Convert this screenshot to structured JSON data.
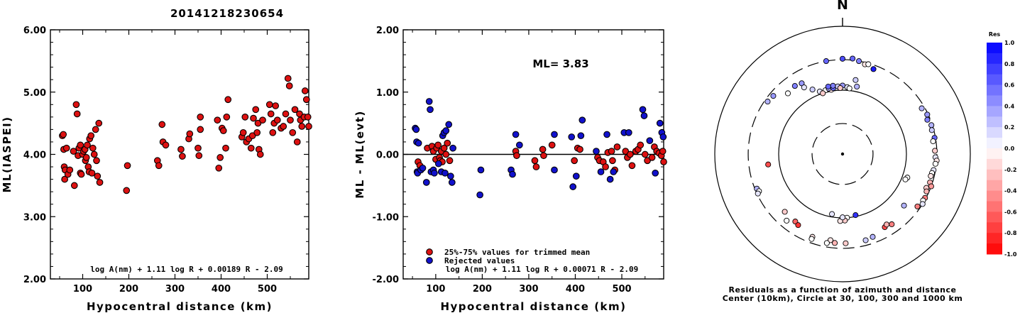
{
  "title": "20141218230654",
  "chart_data": [
    {
      "type": "scatter",
      "ylabel": "ML(IASPEI)",
      "xlabel": "Hypocentral distance (km)",
      "xlim": [
        30,
        590
      ],
      "ylim": [
        2.0,
        6.0
      ],
      "xticks": [
        "100",
        "200",
        "300",
        "400",
        "500"
      ],
      "yticks": [
        "2.00",
        "3.00",
        "4.00",
        "5.00",
        "6.00"
      ],
      "annotation": "log A(nm) + 1.11 log R + 0.00189 R - 2.09",
      "marker_color": "#dd1111",
      "points": [
        [
          56,
          4.3
        ],
        [
          58,
          4.32
        ],
        [
          59,
          4.08
        ],
        [
          60,
          3.8
        ],
        [
          61,
          3.6
        ],
        [
          62,
          3.75
        ],
        [
          65,
          4.1
        ],
        [
          68,
          3.68
        ],
        [
          72,
          3.75
        ],
        [
          80,
          4.05
        ],
        [
          82,
          3.5
        ],
        [
          86,
          4.8
        ],
        [
          88,
          4.65
        ],
        [
          90,
          3.98
        ],
        [
          92,
          4.1
        ],
        [
          95,
          4.15
        ],
        [
          95,
          3.7
        ],
        [
          97,
          3.68
        ],
        [
          100,
          4.0
        ],
        [
          102,
          4.05
        ],
        [
          105,
          4.08
        ],
        [
          106,
          3.9
        ],
        [
          108,
          3.95
        ],
        [
          110,
          4.15
        ],
        [
          112,
          3.8
        ],
        [
          114,
          3.72
        ],
        [
          115,
          4.25
        ],
        [
          118,
          4.3
        ],
        [
          120,
          3.7
        ],
        [
          122,
          4.1
        ],
        [
          125,
          4.0
        ],
        [
          128,
          4.4
        ],
        [
          130,
          3.9
        ],
        [
          132,
          3.65
        ],
        [
          135,
          4.5
        ],
        [
          137,
          3.55
        ],
        [
          195,
          3.42
        ],
        [
          197,
          3.82
        ],
        [
          262,
          3.9
        ],
        [
          265,
          3.82
        ],
        [
          272,
          4.48
        ],
        [
          274,
          4.2
        ],
        [
          280,
          4.15
        ],
        [
          313,
          4.08
        ],
        [
          316,
          3.97
        ],
        [
          330,
          4.25
        ],
        [
          332,
          4.33
        ],
        [
          350,
          4.1
        ],
        [
          352,
          3.98
        ],
        [
          355,
          4.6
        ],
        [
          355,
          4.4
        ],
        [
          392,
          4.55
        ],
        [
          395,
          3.78
        ],
        [
          398,
          3.95
        ],
        [
          402,
          4.42
        ],
        [
          405,
          4.38
        ],
        [
          410,
          4.1
        ],
        [
          412,
          4.6
        ],
        [
          415,
          4.88
        ],
        [
          445,
          4.28
        ],
        [
          448,
          4.35
        ],
        [
          452,
          4.6
        ],
        [
          455,
          4.2
        ],
        [
          460,
          4.25
        ],
        [
          465,
          4.1
        ],
        [
          468,
          4.3
        ],
        [
          470,
          4.58
        ],
        [
          475,
          4.72
        ],
        [
          478,
          4.35
        ],
        [
          480,
          4.5
        ],
        [
          482,
          4.08
        ],
        [
          485,
          4.0
        ],
        [
          490,
          4.55
        ],
        [
          505,
          4.8
        ],
        [
          508,
          4.65
        ],
        [
          512,
          4.35
        ],
        [
          515,
          4.5
        ],
        [
          518,
          4.78
        ],
        [
          522,
          4.55
        ],
        [
          530,
          4.42
        ],
        [
          535,
          4.45
        ],
        [
          540,
          4.65
        ],
        [
          545,
          5.22
        ],
        [
          548,
          5.1
        ],
        [
          550,
          4.55
        ],
        [
          555,
          4.35
        ],
        [
          560,
          4.72
        ],
        [
          565,
          4.2
        ],
        [
          570,
          4.65
        ],
        [
          572,
          4.55
        ],
        [
          575,
          4.45
        ],
        [
          580,
          4.6
        ],
        [
          582,
          5.02
        ],
        [
          585,
          4.88
        ],
        [
          588,
          4.6
        ],
        [
          590,
          4.45
        ]
      ]
    },
    {
      "type": "scatter",
      "ylabel": "ML - ML(evt)",
      "xlabel": "Hypocentral distance (km)",
      "xlim": [
        30,
        590
      ],
      "ylim": [
        -2.0,
        2.0
      ],
      "xticks": [
        "100",
        "200",
        "300",
        "400",
        "500"
      ],
      "yticks": [
        "-2.00",
        "-1.00",
        "0.00",
        "1.00",
        "2.00"
      ],
      "ml_label": "ML= 3.83",
      "annotation": "log A(nm) + 1.11 log R + 0.00071 R - 2.09",
      "legend": [
        {
          "label": "25%-75% values for trimmed mean",
          "color": "#dd1111"
        },
        {
          "label": "Rejected values",
          "color": "#1111cc"
        }
      ],
      "series": [
        {
          "name": "25%-75% values for trimmed mean",
          "color": "#dd1111",
          "points": [
            [
              62,
              -0.12
            ],
            [
              66,
              -0.18
            ],
            [
              82,
              0.1
            ],
            [
              92,
              0.13
            ],
            [
              95,
              0.05
            ],
            [
              100,
              -0.08
            ],
            [
              102,
              0.1
            ],
            [
              105,
              0.15
            ],
            [
              108,
              -0.05
            ],
            [
              110,
              -0.1
            ],
            [
              112,
              0.05
            ],
            [
              114,
              -0.12
            ],
            [
              118,
              0.1
            ],
            [
              122,
              0.0
            ],
            [
              125,
              0.18
            ],
            [
              130,
              -0.1
            ],
            [
              272,
              0.05
            ],
            [
              274,
              -0.02
            ],
            [
              313,
              -0.1
            ],
            [
              316,
              -0.2
            ],
            [
              330,
              0.08
            ],
            [
              332,
              -0.02
            ],
            [
              350,
              0.15
            ],
            [
              398,
              -0.1
            ],
            [
              405,
              0.1
            ],
            [
              410,
              0.08
            ],
            [
              448,
              -0.05
            ],
            [
              452,
              -0.1
            ],
            [
              460,
              -0.12
            ],
            [
              465,
              -0.2
            ],
            [
              470,
              0.03
            ],
            [
              478,
              0.05
            ],
            [
              480,
              -0.1
            ],
            [
              485,
              -0.25
            ],
            [
              490,
              0.12
            ],
            [
              508,
              0.05
            ],
            [
              512,
              -0.05
            ],
            [
              518,
              0.0
            ],
            [
              522,
              -0.18
            ],
            [
              530,
              0.05
            ],
            [
              535,
              0.08
            ],
            [
              540,
              0.15
            ],
            [
              550,
              0.0
            ],
            [
              555,
              -0.1
            ],
            [
              565,
              -0.05
            ],
            [
              570,
              0.12
            ],
            [
              575,
              0.05
            ],
            [
              580,
              0.02
            ],
            [
              585,
              -0.02
            ],
            [
              588,
              0.05
            ],
            [
              590,
              -0.12
            ]
          ]
        },
        {
          "name": "Rejected values",
          "color": "#1111cc",
          "points": [
            [
              56,
              0.42
            ],
            [
              58,
              0.4
            ],
            [
              59,
              0.2
            ],
            [
              60,
              -0.28
            ],
            [
              61,
              -0.3
            ],
            [
              63,
              0.18
            ],
            [
              68,
              -0.25
            ],
            [
              72,
              -0.22
            ],
            [
              80,
              -0.45
            ],
            [
              86,
              0.85
            ],
            [
              88,
              0.72
            ],
            [
              90,
              -0.28
            ],
            [
              95,
              -0.25
            ],
            [
              97,
              -0.3
            ],
            [
              106,
              -0.15
            ],
            [
              112,
              -0.28
            ],
            [
              115,
              0.3
            ],
            [
              118,
              0.35
            ],
            [
              120,
              -0.3
            ],
            [
              122,
              0.38
            ],
            [
              128,
              0.48
            ],
            [
              132,
              -0.35
            ],
            [
              135,
              -0.45
            ],
            [
              137,
              0.1
            ],
            [
              195,
              -0.65
            ],
            [
              197,
              -0.25
            ],
            [
              262,
              -0.25
            ],
            [
              265,
              -0.32
            ],
            [
              272,
              0.32
            ],
            [
              280,
              0.15
            ],
            [
              355,
              0.32
            ],
            [
              355,
              -0.25
            ],
            [
              392,
              0.28
            ],
            [
              395,
              -0.52
            ],
            [
              402,
              -0.35
            ],
            [
              412,
              0.3
            ],
            [
              415,
              0.55
            ],
            [
              445,
              0.05
            ],
            [
              455,
              -0.28
            ],
            [
              468,
              0.32
            ],
            [
              475,
              -0.4
            ],
            [
              482,
              -0.28
            ],
            [
              505,
              0.35
            ],
            [
              515,
              0.35
            ],
            [
              545,
              0.72
            ],
            [
              548,
              0.62
            ],
            [
              560,
              0.22
            ],
            [
              572,
              -0.3
            ],
            [
              582,
              0.5
            ],
            [
              586,
              0.35
            ],
            [
              589,
              0.28
            ]
          ]
        }
      ]
    },
    {
      "type": "scatter",
      "subtype": "polar-residuals",
      "north_label": "N",
      "caption_line1": "Residuals as a function of azimuth and distance",
      "caption_line2": "Center (10km), Circle at 30, 100, 300 and 1000 km",
      "colorbar_title": "Res",
      "colorbar_ticks": [
        "1.0",
        "0.8",
        "0.6",
        "0.4",
        "0.2",
        "0.0",
        "-0.2",
        "-0.4",
        "-0.6",
        "-0.8",
        "-1.0"
      ],
      "rings_km": [
        30,
        100,
        300,
        1000
      ],
      "points_az_dist_res": [
        [
          350,
          300,
          0.6
        ],
        [
          0,
          310,
          0.7
        ],
        [
          6,
          318,
          0.6
        ],
        [
          10,
          300,
          0.5
        ],
        [
          14,
          280,
          -0.1
        ],
        [
          16,
          290,
          0.0
        ],
        [
          20,
          260,
          0.9
        ],
        [
          330,
          190,
          0.4
        ],
        [
          325,
          200,
          0.5
        ],
        [
          330,
          160,
          0.1
        ],
        [
          305,
          270,
          0.3
        ],
        [
          310,
          260,
          0.4
        ],
        [
          318,
          190,
          0.0
        ],
        [
          335,
          130,
          0.2
        ],
        [
          340,
          110,
          0.1
        ],
        [
          345,
          108,
          0.0
        ],
        [
          350,
          105,
          -0.1
        ],
        [
          342,
          100,
          -0.2
        ],
        [
          348,
          112,
          0.3
        ],
        [
          352,
          110,
          0.6
        ],
        [
          356,
          115,
          0.2
        ],
        [
          0,
          118,
          0.4
        ],
        [
          4,
          112,
          0.1
        ],
        [
          6,
          108,
          0.0
        ],
        [
          358,
          108,
          -0.2
        ],
        [
          352,
          120,
          0.5
        ],
        [
          348,
          120,
          0.6
        ],
        [
          10,
          150,
          0.2
        ],
        [
          12,
          120,
          0.3
        ],
        [
          60,
          270,
          0.3
        ],
        [
          65,
          290,
          0.4
        ],
        [
          68,
          270,
          0.5
        ],
        [
          72,
          290,
          0.3
        ],
        [
          75,
          280,
          0.2
        ],
        [
          80,
          290,
          0.6
        ],
        [
          82,
          270,
          0.0
        ],
        [
          88,
          280,
          -0.2
        ],
        [
          92,
          285,
          0.1
        ],
        [
          94,
          300,
          -0.1
        ],
        [
          96,
          290,
          0.0
        ],
        [
          100,
          280,
          0.1
        ],
        [
          102,
          270,
          0.0
        ],
        [
          104,
          265,
          -0.1
        ],
        [
          108,
          275,
          -0.3
        ],
        [
          110,
          300,
          -0.4
        ],
        [
          112,
          260,
          -0.2
        ],
        [
          114,
          275,
          -0.3
        ],
        [
          118,
          290,
          -0.5
        ],
        [
          120,
          285,
          0.0
        ],
        [
          122,
          300,
          0.1
        ],
        [
          125,
          270,
          -0.5
        ],
        [
          130,
          180,
          0.3
        ],
        [
          110,
          120,
          0.0
        ],
        [
          112,
          115,
          0.0
        ],
        [
          176,
          100,
          0.0
        ],
        [
          178,
          110,
          -0.2
        ],
        [
          182,
          112,
          -0.1
        ],
        [
          168,
          95,
          0.8
        ],
        [
          180,
          98,
          0.1
        ],
        [
          190,
          90,
          0.1
        ],
        [
          185,
          250,
          -0.3
        ],
        [
          188,
          230,
          -0.1
        ],
        [
          190,
          260,
          0.0
        ],
        [
          178,
          250,
          -0.2
        ],
        [
          200,
          240,
          -0.1
        ],
        [
          160,
          240,
          0.3
        ],
        [
          165,
          250,
          0.2
        ],
        [
          150,
          210,
          -0.7
        ],
        [
          145,
          220,
          -0.5
        ],
        [
          148,
          200,
          -0.3
        ],
        [
          220,
          230,
          0.0
        ],
        [
          225,
          190,
          -0.2
        ],
        [
          215,
          195,
          -0.6
        ],
        [
          212,
          205,
          -0.8
        ],
        [
          248,
          280,
          0.3
        ],
        [
          246,
          270,
          0.0
        ],
        [
          245,
          290,
          0.1
        ],
        [
          262,
          150,
          -0.7
        ],
        [
          200,
          260,
          0.0
        ]
      ]
    }
  ]
}
